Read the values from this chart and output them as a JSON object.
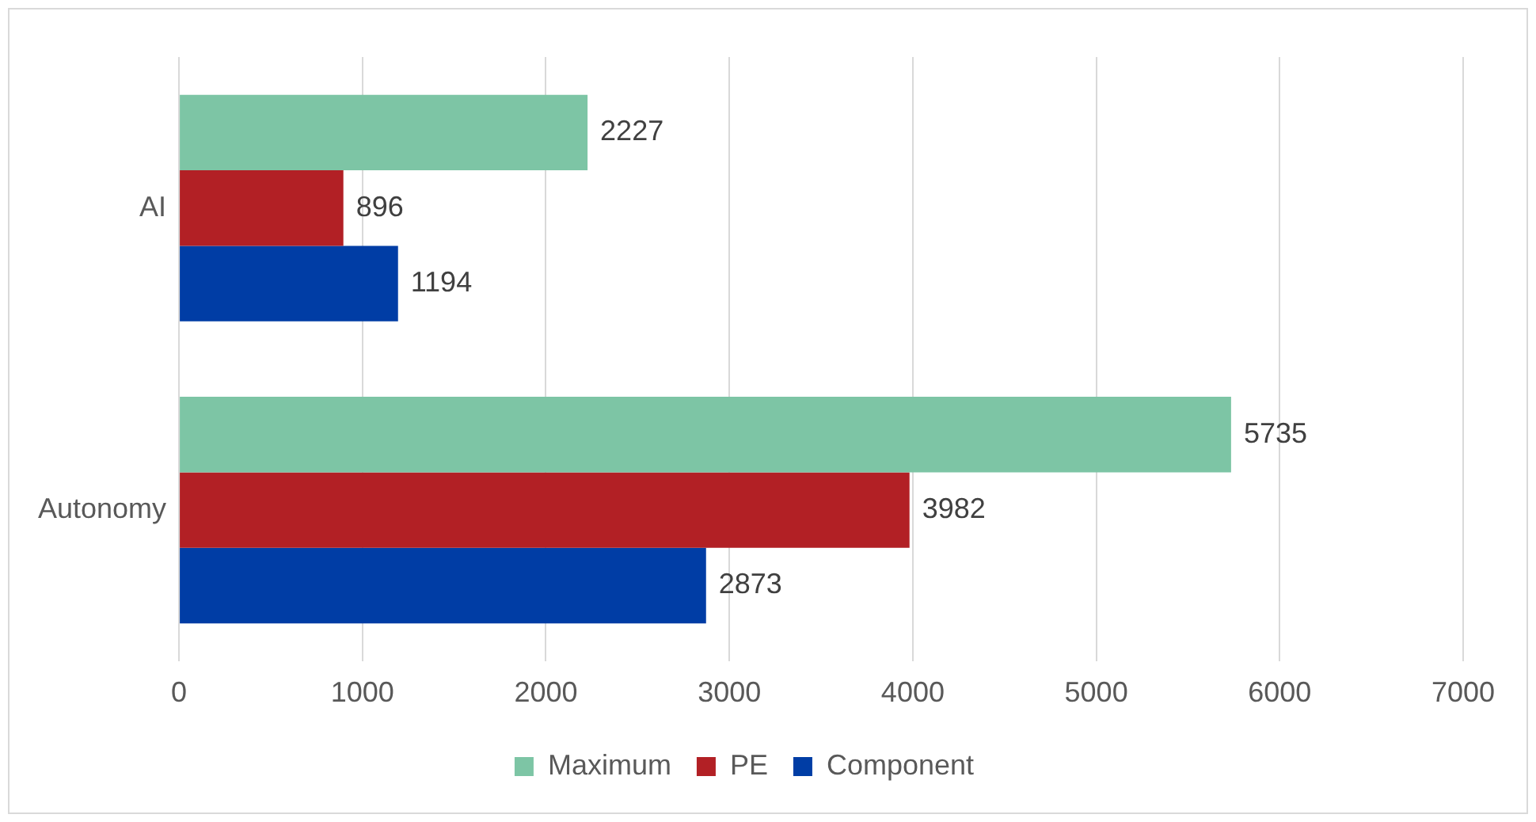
{
  "chart_data": {
    "type": "bar",
    "orientation": "horizontal",
    "categories": [
      "AI",
      "Autonomy"
    ],
    "series": [
      {
        "name": "Maximum",
        "color": "#7dc5a5",
        "values": [
          2227,
          5735
        ]
      },
      {
        "name": "PE",
        "color": "#b22025",
        "values": [
          896,
          3982
        ]
      },
      {
        "name": "Component",
        "color": "#003da5",
        "values": [
          1194,
          2873
        ]
      }
    ],
    "xlim": [
      0,
      7000
    ],
    "xticks": [
      0,
      1000,
      2000,
      3000,
      4000,
      5000,
      6000,
      7000
    ],
    "grid": "x",
    "legend": "bottom",
    "data_labels": true
  }
}
